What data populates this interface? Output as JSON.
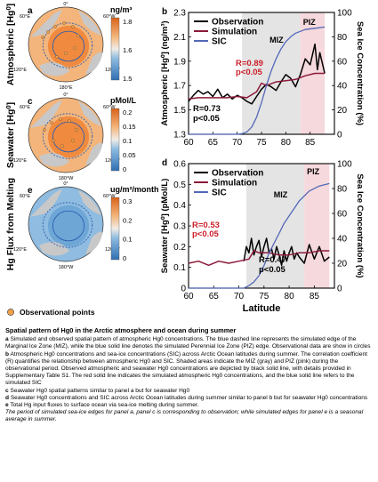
{
  "maps": [
    {
      "letter": "a",
      "row_label": "Atmospheric [Hg⁰]",
      "unit": "ng/m³",
      "ticks": [
        "1.8",
        "1.6",
        "1.5"
      ],
      "colors": [
        "#2f6fb3",
        "#6ea6d6",
        "#c8dcec",
        "#f5d3b0",
        "#f0a45c",
        "#e0701f"
      ],
      "lon_labels": [
        "0°",
        "60°E",
        "120°E",
        "180°E",
        "120°W",
        "60°W"
      ]
    },
    {
      "letter": "c",
      "row_label": "Seawater [Hg⁰]",
      "unit": "pMol/L",
      "ticks": [
        "0.2",
        "0.15",
        "0.1",
        "0.05",
        "0"
      ],
      "colors": [
        "#2f6fb3",
        "#6ea6d6",
        "#c8dcec",
        "#f5d3b0",
        "#f0a45c",
        "#e0701f"
      ],
      "lon_labels": [
        "0°",
        "60°E",
        "120°E",
        "180°W",
        "120°W",
        "60°W"
      ]
    },
    {
      "letter": "e",
      "row_label": "Hg Flux from Melting",
      "unit": "ug/m²/month",
      "ticks": [
        "0.3",
        "0.2",
        "0.1",
        "0"
      ],
      "colors": [
        "#2f6fb3",
        "#6ea6d6",
        "#c8dcec",
        "#f5d3b0",
        "#f0a45c",
        "#e0701f"
      ],
      "lon_labels": [
        "0°",
        "60°E",
        "120°E",
        "180°W",
        "120°W",
        "60°W"
      ]
    }
  ],
  "legend_points": "Observational points",
  "chart_data": [
    {
      "type": "line",
      "letter": "b",
      "xlim": [
        60,
        90
      ],
      "xticks": [
        60,
        65,
        70,
        75,
        80,
        85
      ],
      "ylim": [
        1.3,
        2.3
      ],
      "yticks": [
        1.3,
        1.5,
        1.7,
        1.9,
        2.1,
        2.3
      ],
      "y2lim": [
        0,
        100
      ],
      "y2ticks": [
        0,
        20,
        40,
        60,
        80,
        100
      ],
      "ylabel": "Atmospheric [Hg⁰] (ng/m³)",
      "y2label": "Sea Ice Concentration (%)",
      "xlabel": "",
      "shaded": [
        {
          "label": "MIZ",
          "from": 71,
          "to": 83,
          "color": "#e4e4e4"
        },
        {
          "label": "PIZ",
          "from": 83,
          "to": 88,
          "color": "#f6d9dd"
        }
      ],
      "legend": [
        "Observation",
        "Simulation",
        "SIC"
      ],
      "annotations": [
        {
          "text": "R=0.89",
          "color": "#cc1f2a"
        },
        {
          "text": "p<0.05",
          "color": "#cc1f2a"
        },
        {
          "text": "R=0.73",
          "color": "#000000"
        },
        {
          "text": "p<0.05",
          "color": "#000000"
        }
      ],
      "series": [
        {
          "name": "Observation",
          "axis": "left",
          "color": "#000000",
          "x": [
            60,
            61,
            62,
            63,
            64,
            65,
            66,
            67,
            68,
            69,
            70,
            71,
            72,
            73,
            74,
            75,
            76,
            77,
            78,
            79,
            80,
            81,
            82,
            83,
            84,
            85,
            86,
            86.5,
            87,
            88
          ],
          "y": [
            1.57,
            1.62,
            1.66,
            1.63,
            1.65,
            1.61,
            1.67,
            1.6,
            1.63,
            1.59,
            1.62,
            1.6,
            1.57,
            1.55,
            1.61,
            1.67,
            1.71,
            1.69,
            1.66,
            1.73,
            1.79,
            1.76,
            1.69,
            1.79,
            1.92,
            1.87,
            2.04,
            1.83,
            1.97,
            1.8
          ]
        },
        {
          "name": "Simulation",
          "axis": "left",
          "color": "#8b1a3a",
          "x": [
            60,
            62,
            64,
            66,
            68,
            70,
            72,
            74,
            75,
            76,
            78,
            80,
            82,
            84,
            86,
            88
          ],
          "y": [
            1.59,
            1.6,
            1.6,
            1.6,
            1.6,
            1.61,
            1.6,
            1.65,
            1.72,
            1.7,
            1.73,
            1.74,
            1.75,
            1.78,
            1.8,
            1.8
          ]
        },
        {
          "name": "SIC",
          "axis": "right",
          "color": "#5468b8",
          "x": [
            60,
            64,
            68,
            70,
            71,
            72,
            73,
            74,
            75,
            76,
            77,
            78,
            79,
            80,
            81,
            82,
            84,
            86,
            88
          ],
          "y": [
            0,
            0,
            0,
            0,
            0.5,
            2,
            6,
            14,
            26,
            40,
            52,
            62,
            70,
            76,
            80,
            83,
            86,
            87,
            88
          ]
        }
      ]
    },
    {
      "type": "line",
      "letter": "d",
      "xlim": [
        60,
        89
      ],
      "xticks": [
        60,
        65,
        70,
        75,
        80,
        85
      ],
      "ylim": [
        0,
        0.6
      ],
      "yticks": [
        0,
        0.1,
        0.2,
        0.3,
        0.4,
        0.5,
        0.6
      ],
      "y2lim": [
        0,
        100
      ],
      "y2ticks": [
        0,
        20,
        40,
        60,
        80,
        100
      ],
      "ylabel": "Seawater [Hg⁰] (pMol/L)",
      "y2label": "Sea Ice Concentration (%)",
      "xlabel": "Latitude",
      "shaded": [
        {
          "label": "MIZ",
          "from": 71.5,
          "to": 83,
          "color": "#e4e4e4"
        },
        {
          "label": "PIZ",
          "from": 83,
          "to": 88,
          "color": "#f6d9dd"
        }
      ],
      "legend": [
        "Observation",
        "Simulation",
        "SIC"
      ],
      "annotations": [
        {
          "text": "R=0.53",
          "color": "#cc1f2a"
        },
        {
          "text": "p<0.05",
          "color": "#cc1f2a"
        },
        {
          "text": "R=0.47",
          "color": "#000000"
        },
        {
          "text": "p<0.05",
          "color": "#000000"
        }
      ],
      "series": [
        {
          "name": "Observation",
          "axis": "left",
          "color": "#000000",
          "x": [
            71,
            71.5,
            72,
            72.5,
            73,
            73.5,
            74,
            74.5,
            75,
            75.5,
            76,
            76.5,
            77,
            77.5,
            78,
            78.5,
            79,
            79.5,
            80,
            80.5,
            81,
            81.5,
            82,
            83,
            84,
            85,
            86,
            87,
            88
          ],
          "y": [
            0.13,
            0.2,
            0.17,
            0.24,
            0.16,
            0.2,
            0.23,
            0.15,
            0.2,
            0.24,
            0.17,
            0.19,
            0.14,
            0.2,
            0.16,
            0.11,
            0.18,
            0.13,
            0.17,
            0.2,
            0.14,
            0.17,
            0.15,
            0.12,
            0.21,
            0.14,
            0.2,
            0.13,
            0.15
          ]
        },
        {
          "name": "Simulation",
          "axis": "left",
          "color": "#8b1a3a",
          "x": [
            60,
            62,
            64,
            66,
            68,
            70,
            72,
            73,
            74,
            76,
            78,
            80,
            82,
            84,
            86,
            88
          ],
          "y": [
            0.12,
            0.13,
            0.11,
            0.13,
            0.12,
            0.13,
            0.14,
            0.18,
            0.17,
            0.17,
            0.16,
            0.16,
            0.17,
            0.17,
            0.18,
            0.18
          ]
        },
        {
          "name": "SIC",
          "axis": "right",
          "color": "#5468b8",
          "x": [
            60,
            66,
            70,
            71,
            72,
            73,
            74,
            75,
            76,
            77,
            78,
            79,
            80,
            81,
            82,
            83,
            84,
            86,
            87,
            88
          ],
          "y": [
            0,
            0,
            0,
            0,
            2,
            5,
            10,
            18,
            28,
            36,
            44,
            52,
            58,
            64,
            70,
            74,
            78,
            82,
            83,
            84
          ]
        }
      ]
    }
  ],
  "caption": {
    "title": "Spatial pattern of Hg0 in the Arctic atmosphere and ocean during summer",
    "items": [
      {
        "letter": "a",
        "text": " Simulated and observed spatial pattern of atmospheric Hg0 concentrations. The blue dashed line represents the simulated edge of the Marginal Ice Zone (MIZ), while the blue solid line denotes the simulated Perennial Ice Zone (PIZ) edge. Observational data are show in circles"
      },
      {
        "letter": "b",
        "text": " Atmospheric Hg0 concentrations and sea-ice concentrations (SIC) across Arctic Ocean latitudes during summer. The correlation coefficient (R) quantifies the relationship between atmospheric Hg0 and SIC. Shaded areas indicate the MIZ (gray) and PIZ (pink) during the observational period. Observed atmospheric and seawater Hg0 concentrations are depicted by black solid line, with details provided in Supplementary Table S1. The red solid line indicates the simulated atmospheric Hg0 concentrations, and the blue solid line refers to the simulated SIC"
      },
      {
        "letter": "c",
        "text": " Seawater Hg0 spatial patterns similar to panel a but for seawater Hg0"
      },
      {
        "letter": "d",
        "text": " Seawater Hg0 concentrations and SIC across Arctic Ocean latitudes during summer similar to panel b but for seawater Hg0 concentrations"
      },
      {
        "letter": "e",
        "text": " Total Hg input fluxes to surface ocean via sea-ice melting during summer."
      }
    ],
    "note": "The period of simulated sea-ice edges for panel a, panel c is corresponding to observation; while simulated edges for panel e is a seasonal average in summer."
  }
}
